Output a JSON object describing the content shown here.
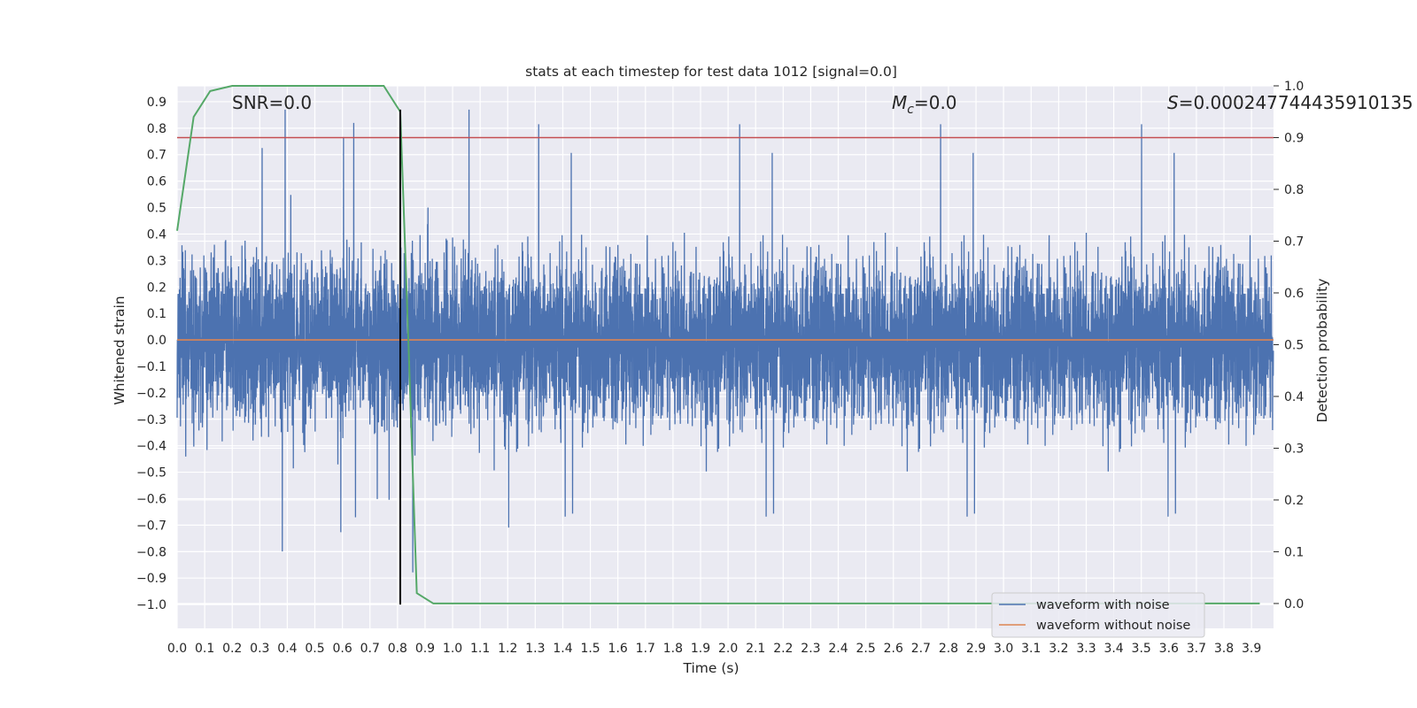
{
  "chart_data": {
    "type": "line",
    "title": "stats at each timestep for test data 1012 [signal=0.0]",
    "xlabel": "Time (s)",
    "ylabel": "Whitened strain",
    "y2label": "Detection probability",
    "xlim": [
      0.0,
      3.98
    ],
    "ylim": [
      -1.09,
      0.96
    ],
    "y2lim": [
      -0.048,
      1.0
    ],
    "x_ticks": [
      "0.0",
      "0.1",
      "0.2",
      "0.3",
      "0.4",
      "0.5",
      "0.6",
      "0.7",
      "0.8",
      "0.9",
      "1.0",
      "1.1",
      "1.2",
      "1.3",
      "1.4",
      "1.5",
      "1.6",
      "1.7",
      "1.8",
      "1.9",
      "2.0",
      "2.1",
      "2.2",
      "2.3",
      "2.4",
      "2.5",
      "2.6",
      "2.7",
      "2.8",
      "2.9",
      "3.0",
      "3.1",
      "3.2",
      "3.3",
      "3.4",
      "3.5",
      "3.6",
      "3.7",
      "3.8",
      "3.9"
    ],
    "y_ticks": [
      "0.9",
      "0.8",
      "0.7",
      "0.6",
      "0.5",
      "0.4",
      "0.3",
      "0.2",
      "0.1",
      "0.0",
      "−0.1",
      "−0.2",
      "−0.3",
      "−0.4",
      "−0.5",
      "−0.6",
      "−0.7",
      "−0.8",
      "−0.9",
      "−1.0"
    ],
    "y2_ticks": [
      "1.0",
      "0.9",
      "0.8",
      "0.7",
      "0.6",
      "0.5",
      "0.4",
      "0.3",
      "0.2",
      "0.1",
      "0.0"
    ],
    "grid": true,
    "legend_position": "lower-right",
    "annotations": {
      "snr": "SNR=0.0",
      "mc_symbol": "M",
      "mc_sub": "c",
      "mc_value": "=0.0",
      "s_symbol": "S",
      "s_value": "=0.000247744435910135"
    },
    "series": [
      {
        "name": "waveform with noise",
        "color": "#4c72b0",
        "axis": "left",
        "description": "noisy whitened strain, roughly symmetric around 0 with spikes reaching about 0.87 and -1.0",
        "sample_rate": 2048,
        "amplitude_range": [
          -1.0,
          0.87
        ]
      },
      {
        "name": "waveform without noise",
        "color": "#dd8452",
        "axis": "left",
        "x": [
          0.0,
          3.98
        ],
        "y": [
          0.0,
          0.0
        ]
      },
      {
        "name": "detection probability",
        "color": "#55a868",
        "axis": "right",
        "x": [
          0.0,
          0.06,
          0.12,
          0.2,
          0.3,
          0.4,
          0.5,
          0.6,
          0.7,
          0.75,
          0.81,
          0.84,
          0.87,
          0.93,
          1.0,
          2.0,
          3.0,
          3.93
        ],
        "y": [
          0.72,
          0.94,
          0.99,
          1.0,
          1.0,
          1.0,
          1.0,
          1.0,
          1.0,
          1.0,
          0.95,
          0.5,
          0.02,
          0.0,
          0.0,
          0.0,
          0.0,
          0.0
        ]
      },
      {
        "name": "threshold",
        "color": "#c44e52",
        "axis": "right",
        "x": [
          0.0,
          3.98
        ],
        "y": [
          0.9,
          0.9
        ]
      }
    ],
    "vertical_marker": {
      "x": 0.81,
      "color": "#000000",
      "y_range": [
        -1.0,
        0.87
      ]
    }
  }
}
